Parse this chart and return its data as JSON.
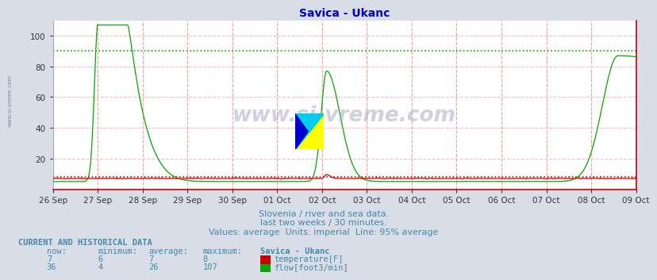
{
  "title": "Savica - Ukanc",
  "title_color": "#0000cc",
  "bg_color": "#d8dde8",
  "plot_bg_color": "#ffffff",
  "grid_v_color": "#ff9999",
  "grid_h_color": "#ffbbbb",
  "ylim": [
    0,
    110
  ],
  "yticks": [
    20,
    40,
    60,
    80,
    100
  ],
  "x_labels": [
    "26 Sep",
    "27 Sep",
    "28 Sep",
    "29 Sep",
    "30 Sep",
    "01 Oct",
    "02 Oct",
    "03 Oct",
    "04 Oct",
    "05 Oct",
    "06 Oct",
    "07 Oct",
    "08 Oct",
    "09 Oct"
  ],
  "temp_color": "#cc0000",
  "flow_color": "#00aa00",
  "temp_95pct": 8,
  "flow_95pct": 90,
  "watermark": "www.si-vreme.com",
  "subtitle1": "Slovenia / river and sea data.",
  "subtitle2": "last two weeks / 30 minutes.",
  "subtitle3": "Values: average  Units: imperial  Line: 95% average",
  "subtitle_color": "#4488aa",
  "table_header": "CURRENT AND HISTORICAL DATA",
  "col_headers": [
    "now:",
    "minimum:",
    "average:",
    "maximum:",
    "Savica - Ukanc"
  ],
  "temp_row": [
    "7",
    "6",
    "7",
    "8"
  ],
  "flow_row": [
    "36",
    "4",
    "26",
    "107"
  ],
  "temp_label": "temperature[F]",
  "flow_label": "flow[foot3/min]",
  "table_color": "#4488aa",
  "left_label": "www.si-vreme.com",
  "n_points": 672
}
